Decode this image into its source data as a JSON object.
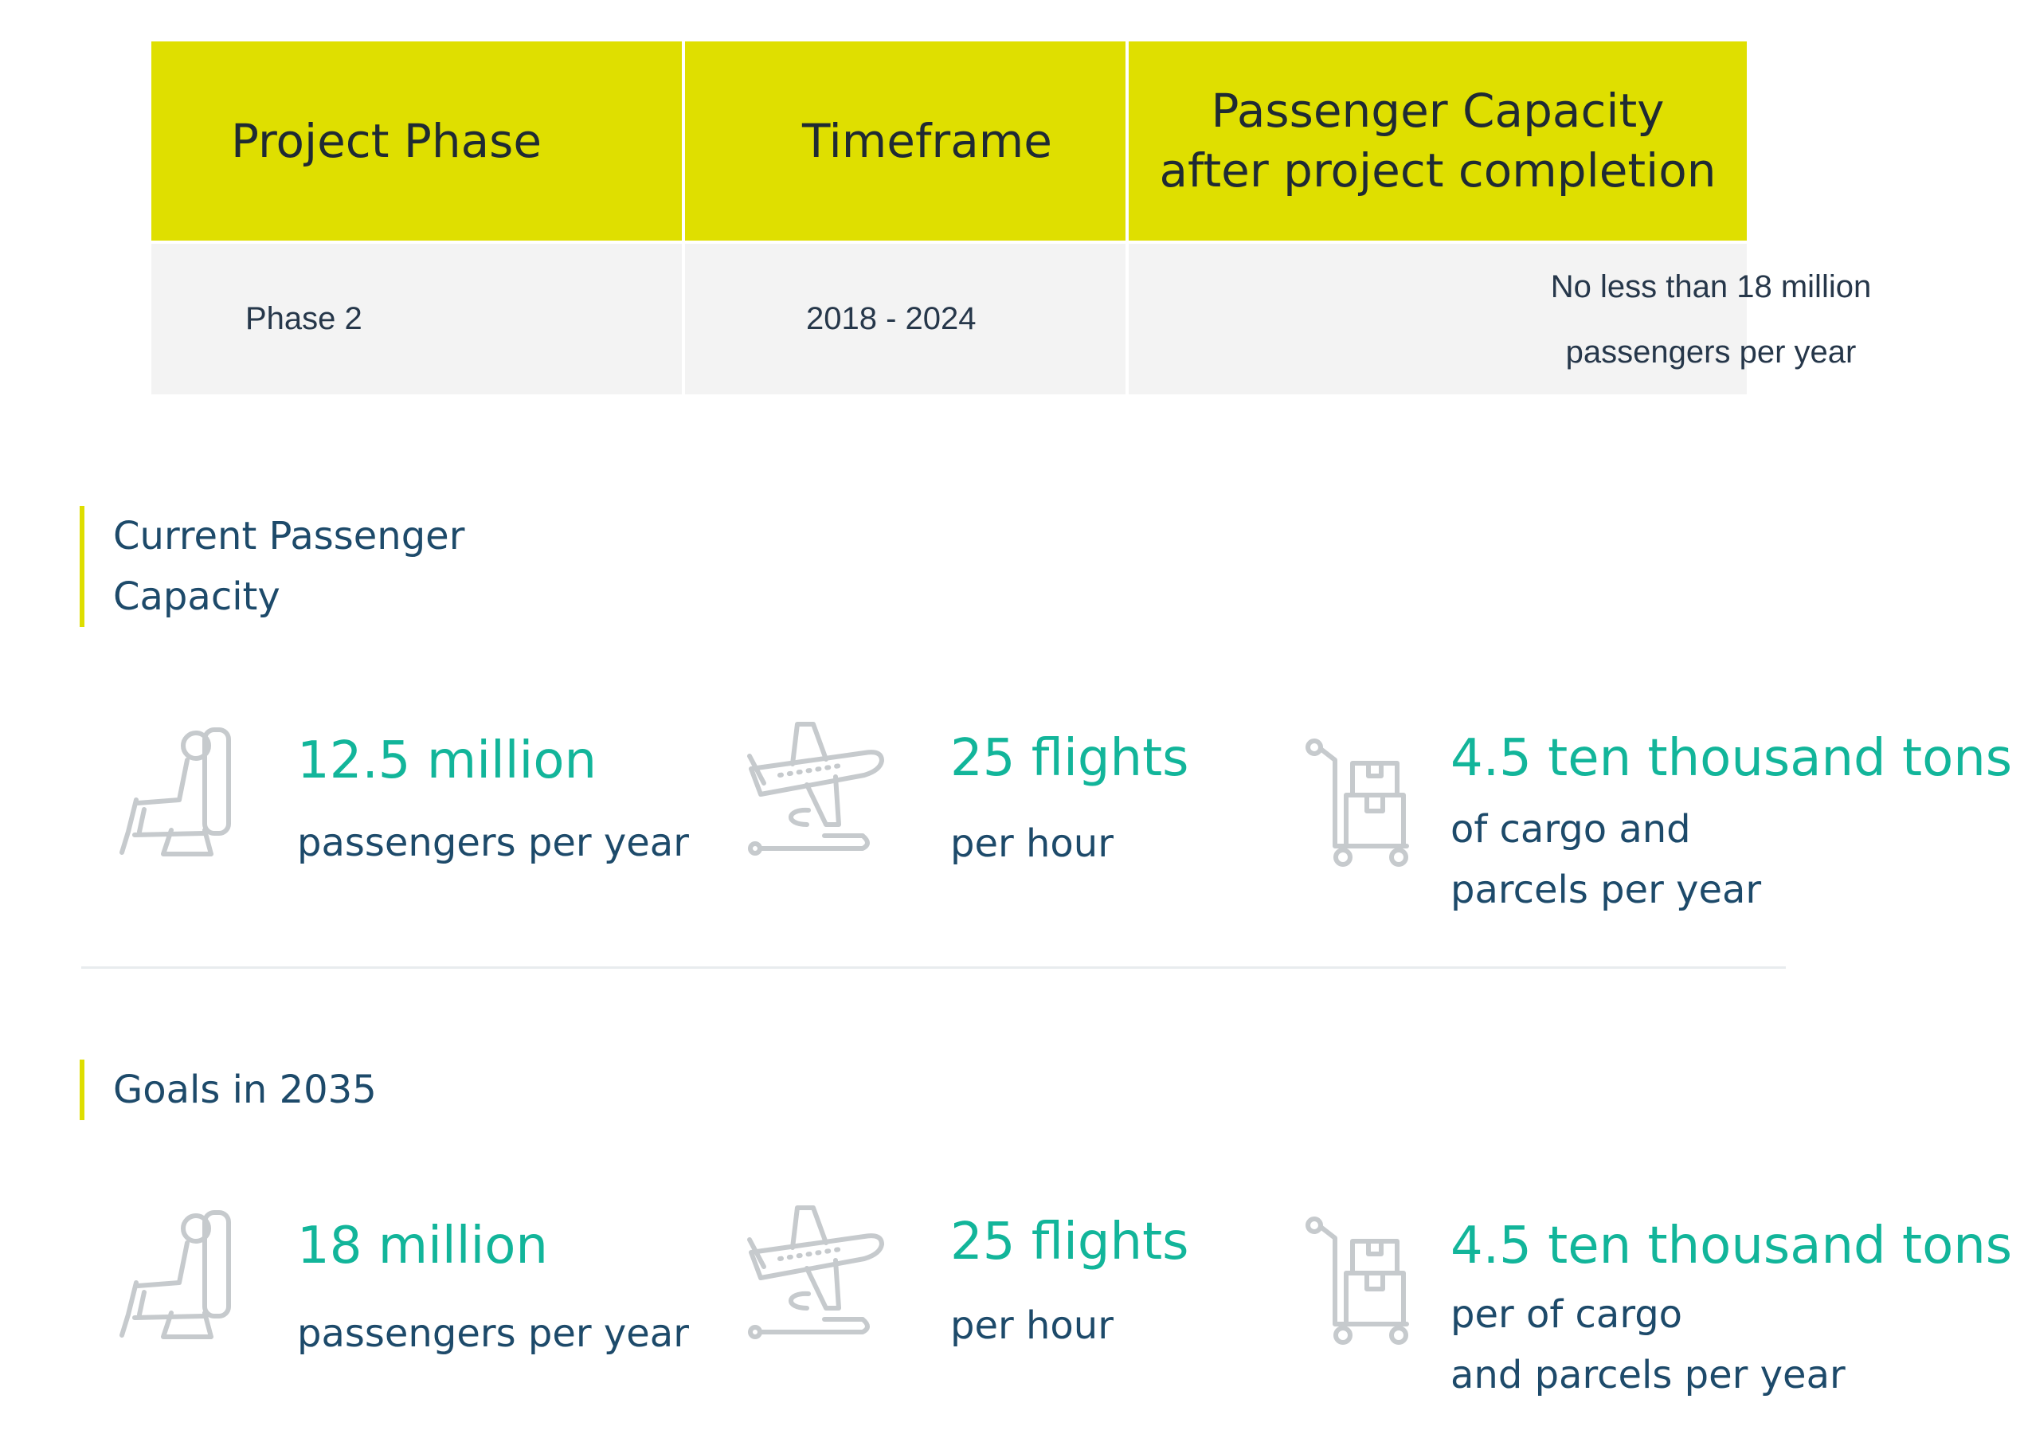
{
  "table": {
    "headers": [
      "Project Phase",
      "Timeframe",
      "Passenger Capacity\nafter project completion"
    ],
    "header_lines": [
      "Passenger Capacity",
      "after project completion"
    ],
    "rows": [
      [
        "Phase 2",
        "2018 - 2024",
        "No less than 18 million passengers per year"
      ]
    ],
    "capacity_lines": [
      "No less than 18 million",
      "passengers per year"
    ]
  },
  "current": {
    "title_lines": [
      "Current Passenger",
      "Capacity"
    ],
    "stats": [
      {
        "icon": "seat-icon",
        "big": "12.5 million",
        "small": [
          "passengers per year"
        ]
      },
      {
        "icon": "airplane-icon",
        "big": "25 flights",
        "small": [
          "per hour"
        ]
      },
      {
        "icon": "cargo-cart-icon",
        "big": "4.5 ten thousand tons",
        "small": [
          "of cargo and",
          "parcels per year"
        ]
      }
    ]
  },
  "goals": {
    "title": "Goals in 2035",
    "stats": [
      {
        "icon": "seat-icon",
        "big": "18 million",
        "small": [
          "passengers per year"
        ]
      },
      {
        "icon": "airplane-icon",
        "big": "25 flights",
        "small": [
          "per hour"
        ]
      },
      {
        "icon": "cargo-cart-icon",
        "big": "4.5 ten thousand tons",
        "small": [
          "per of cargo",
          "and parcels per year"
        ]
      }
    ]
  },
  "colors": {
    "header_bg": "#dfdf00",
    "accent_green": "#12b59a",
    "text_navy": "#1d4a6a",
    "icon_gray": "#c6cacd",
    "row_bg": "#f3f3f3"
  }
}
